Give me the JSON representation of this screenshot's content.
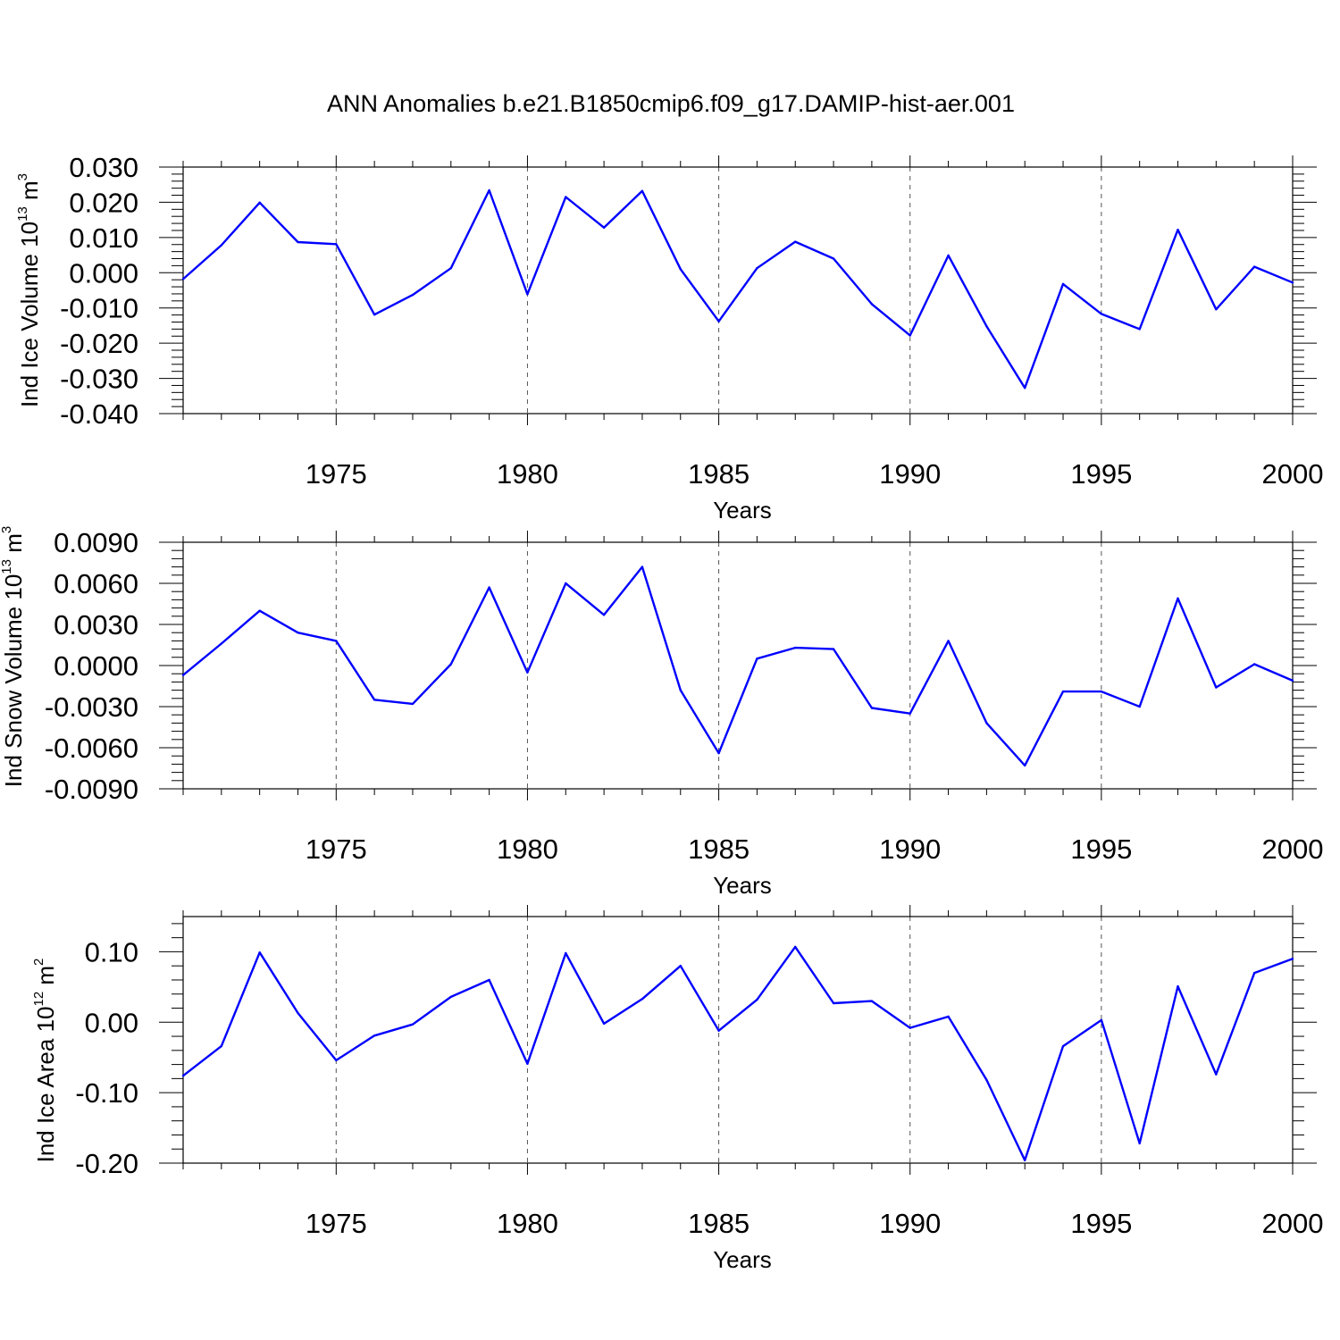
{
  "chart_data": {
    "type": "line",
    "title": "ANN Anomalies b.e21.B1850cmip6.f09_g17.DAMIP-hist-aer.001",
    "line_color": "#0000ff",
    "grid": "vertical dashed lines at major x ticks",
    "panels": [
      {
        "ylabel": "Ind Ice Volume 10",
        "ylabel_exponent": "13",
        "ylabel_unit": "m",
        "ylabel_unit_exponent": "3",
        "xlabel": "Years",
        "xlim": [
          1971,
          2000
        ],
        "ylim": [
          -0.04,
          0.03
        ],
        "yticks": [
          -0.04,
          -0.03,
          -0.02,
          -0.01,
          0.0,
          0.01,
          0.02,
          0.03
        ],
        "ytick_labels": [
          "-0.040",
          "-0.030",
          "-0.020",
          "-0.010",
          "0.000",
          "0.010",
          "0.020",
          "0.030"
        ],
        "xticks": [
          1975,
          1980,
          1985,
          1990,
          1995,
          2000
        ],
        "xtick_labels": [
          "1975",
          "1980",
          "1985",
          "1990",
          "1995",
          "2000"
        ],
        "series": [
          {
            "name": "Ind Ice Volume",
            "x": [
              1971,
              1972,
              1973,
              1974,
              1975,
              1976,
              1977,
              1978,
              1979,
              1980,
              1981,
              1982,
              1983,
              1984,
              1985,
              1986,
              1987,
              1988,
              1989,
              1990,
              1991,
              1992,
              1993,
              1994,
              1995,
              1996,
              1997,
              1998,
              1999,
              2000
            ],
            "values": [
              -0.0018,
              0.0078,
              0.0199,
              0.0087,
              0.0081,
              -0.0119,
              -0.0063,
              0.0013,
              0.0234,
              -0.0061,
              0.0215,
              0.0128,
              0.0232,
              0.001,
              -0.0138,
              0.0013,
              0.0088,
              0.004,
              -0.0089,
              -0.0178,
              0.0049,
              -0.0152,
              -0.0327,
              -0.0032,
              -0.0117,
              -0.016,
              0.0122,
              -0.0104,
              0.0017,
              -0.0028
            ]
          }
        ]
      },
      {
        "ylabel": "Ind Snow Volume 10",
        "ylabel_exponent": "13",
        "ylabel_unit": "m",
        "ylabel_unit_exponent": "3",
        "xlabel": "Years",
        "xlim": [
          1971,
          2000
        ],
        "ylim": [
          -0.009,
          0.009
        ],
        "yticks": [
          -0.009,
          -0.006,
          -0.003,
          0.0,
          0.003,
          0.006,
          0.009
        ],
        "ytick_labels": [
          "-0.0090",
          "-0.0060",
          "-0.0030",
          "0.0000",
          "0.0030",
          "0.0060",
          "0.0090"
        ],
        "xticks": [
          1975,
          1980,
          1985,
          1990,
          1995,
          2000
        ],
        "xtick_labels": [
          "1975",
          "1980",
          "1985",
          "1990",
          "1995",
          "2000"
        ],
        "series": [
          {
            "name": "Ind Snow Volume",
            "x": [
              1971,
              1972,
              1973,
              1974,
              1975,
              1976,
              1977,
              1978,
              1979,
              1980,
              1981,
              1982,
              1983,
              1984,
              1985,
              1986,
              1987,
              1988,
              1989,
              1990,
              1991,
              1992,
              1993,
              1994,
              1995,
              1996,
              1997,
              1998,
              1999,
              2000
            ],
            "values": [
              -0.0007,
              0.0016,
              0.004,
              0.0024,
              0.0018,
              -0.0025,
              -0.0028,
              0.0001,
              0.0057,
              -0.0005,
              0.006,
              0.0037,
              0.0072,
              -0.0018,
              -0.0064,
              0.0005,
              0.0013,
              0.0012,
              -0.0031,
              -0.0035,
              0.0018,
              -0.0042,
              -0.0073,
              -0.0019,
              -0.0019,
              -0.003,
              0.0049,
              -0.0016,
              0.0001,
              -0.0011
            ]
          }
        ]
      },
      {
        "ylabel": "Ind Ice Area 10",
        "ylabel_exponent": "12",
        "ylabel_unit": "m",
        "ylabel_unit_exponent": "2",
        "xlabel": "Years",
        "xlim": [
          1971,
          2000
        ],
        "ylim": [
          -0.2,
          0.15
        ],
        "yticks": [
          -0.2,
          -0.1,
          0.0,
          0.1
        ],
        "ytick_labels": [
          "-0.20",
          "-0.10",
          "0.00",
          "0.10"
        ],
        "xticks": [
          1975,
          1980,
          1985,
          1990,
          1995,
          2000
        ],
        "xtick_labels": [
          "1975",
          "1980",
          "1985",
          "1990",
          "1995",
          "2000"
        ],
        "series": [
          {
            "name": "Ind Ice Area",
            "x": [
              1971,
              1972,
              1973,
              1974,
              1975,
              1976,
              1977,
              1978,
              1979,
              1980,
              1981,
              1982,
              1983,
              1984,
              1985,
              1986,
              1987,
              1988,
              1989,
              1990,
              1991,
              1992,
              1993,
              1994,
              1995,
              1996,
              1997,
              1998,
              1999,
              2000
            ],
            "values": [
              -0.076,
              -0.034,
              0.099,
              0.013,
              -0.054,
              -0.019,
              -0.003,
              0.036,
              0.06,
              -0.059,
              0.098,
              -0.002,
              0.033,
              0.08,
              -0.012,
              0.032,
              0.107,
              0.027,
              0.03,
              -0.008,
              0.008,
              -0.082,
              -0.196,
              -0.034,
              0.003,
              -0.172,
              0.051,
              -0.074,
              0.07,
              0.09
            ]
          }
        ]
      }
    ]
  }
}
